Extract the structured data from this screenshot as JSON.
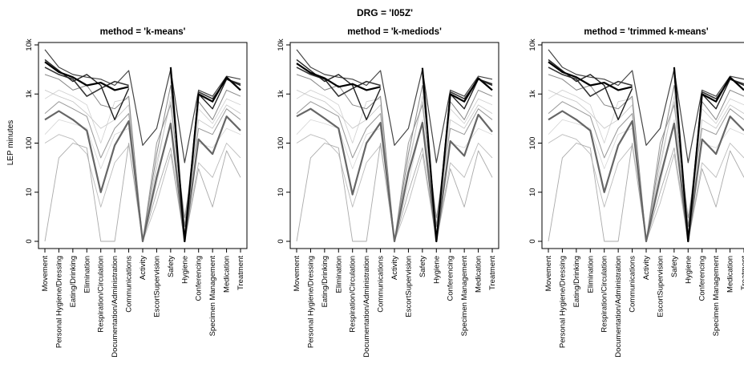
{
  "suptitle": "DRG = 'I05Z'",
  "chart_data": [
    {
      "type": "line",
      "title": "method = 'k-means'",
      "ylabel": "LEP minutes",
      "yscale": "log",
      "yticks": [
        {
          "value": 0,
          "label": "0"
        },
        {
          "value": 10,
          "label": "10"
        },
        {
          "value": 100,
          "label": "100"
        },
        {
          "value": 1000,
          "label": "1k"
        },
        {
          "value": 10000,
          "label": "10k"
        }
      ],
      "categories": [
        "Movement",
        "Personal Hygiene/Dressing",
        "Eating/Drinking",
        "Elimination",
        "Respiration/Circulation",
        "Documentation/Administration",
        "Communications",
        "Activity",
        "EscortSupervision",
        "Safety",
        "Hygiene",
        "Conferencing",
        "Specimen Management",
        "Medication",
        "Treatment"
      ],
      "series": [
        {
          "values": [
            4500,
            2800,
            2200,
            1500,
            1700,
            1200,
            1400,
            null,
            null,
            3500,
            1,
            1000,
            700,
            2200,
            1200
          ],
          "color": "#000000",
          "width": 2.2
        },
        {
          "values": [
            3500,
            2500,
            2000,
            900,
            1300,
            1800,
            1500,
            null,
            null,
            2800,
            1,
            1100,
            800,
            2000,
            1600
          ],
          "color": "#333333",
          "width": 1.6
        },
        {
          "values": [
            8000,
            3500,
            2500,
            2200,
            2000,
            1500,
            3000,
            90,
            200,
            3200,
            40,
            1200,
            900,
            2300,
            2000
          ],
          "color": "#444444",
          "width": 1.2
        },
        {
          "values": [
            300,
            450,
            300,
            180,
            10,
            90,
            280,
            0,
            20,
            250,
            0,
            120,
            60,
            350,
            180
          ],
          "color": "#666666",
          "width": 2.2
        },
        {
          "values": [
            5000,
            3000,
            1800,
            2500,
            1500,
            300,
            1300,
            null,
            null,
            3000,
            0,
            1000,
            500,
            2000,
            1500
          ],
          "color": "#222222",
          "width": 1.4
        },
        {
          "values": [
            2500,
            2000,
            1200,
            1500,
            600,
            500,
            900,
            0,
            60,
            1500,
            2,
            700,
            300,
            1200,
            900
          ],
          "color": "#888888",
          "width": 1.0
        },
        {
          "values": [
            400,
            700,
            500,
            350,
            50,
            200,
            400,
            1,
            100,
            600,
            3,
            200,
            150,
            500,
            300
          ],
          "color": "#999999",
          "width": 1.0
        },
        {
          "values": [
            0,
            50,
            100,
            80,
            0,
            0,
            100,
            0,
            10,
            80,
            0,
            30,
            5,
            70,
            20
          ],
          "color": "#aaaaaa",
          "width": 0.9
        },
        {
          "values": [
            100,
            150,
            120,
            60,
            5,
            40,
            90,
            0,
            6,
            60,
            1,
            40,
            20,
            100,
            50
          ],
          "color": "#bbbbbb",
          "width": 0.9
        },
        {
          "values": [
            1200,
            900,
            700,
            400,
            200,
            300,
            600,
            0,
            40,
            700,
            1,
            300,
            200,
            600,
            400
          ],
          "color": "#c4c4c4",
          "width": 0.8
        },
        {
          "values": [
            800,
            1200,
            900,
            600,
            100,
            700,
            800,
            0,
            30,
            900,
            0,
            500,
            250,
            800,
            600
          ],
          "color": "#cfcfcf",
          "width": 0.8
        },
        {
          "values": [
            150,
            300,
            250,
            200,
            30,
            150,
            200,
            0,
            15,
            300,
            2,
            100,
            80,
            200,
            150
          ],
          "color": "#d6d6d6",
          "width": 0.8
        }
      ]
    },
    {
      "type": "line",
      "title": "method = 'k-mediods'",
      "yscale": "log",
      "yticks": [
        {
          "value": 0,
          "label": "0"
        },
        {
          "value": 10,
          "label": "10"
        },
        {
          "value": 100,
          "label": "100"
        },
        {
          "value": 1000,
          "label": "1k"
        },
        {
          "value": 10000,
          "label": "10k"
        }
      ],
      "categories": [
        "Movement",
        "Personal Hygiene/Dressing",
        "Eating/Drinking",
        "Elimination",
        "Respiration/Circulation",
        "Documentation/Administration",
        "Communications",
        "Activity",
        "EscortSupervision",
        "Safety",
        "Hygiene",
        "Conferencing",
        "Specimen Management",
        "Medication",
        "Treatment"
      ],
      "series": [
        {
          "values": [
            4200,
            2700,
            2100,
            1400,
            1600,
            1200,
            1400,
            null,
            null,
            3400,
            1,
            1000,
            700,
            2100,
            1200
          ],
          "color": "#000000",
          "width": 2.2
        },
        {
          "values": [
            3500,
            2500,
            2000,
            900,
            1300,
            1800,
            1500,
            null,
            null,
            2800,
            1,
            1100,
            800,
            2000,
            1600
          ],
          "color": "#333333",
          "width": 1.6
        },
        {
          "values": [
            8000,
            3500,
            2500,
            2200,
            2000,
            1500,
            3000,
            90,
            200,
            3200,
            40,
            1200,
            900,
            2300,
            2000
          ],
          "color": "#444444",
          "width": 1.2
        },
        {
          "values": [
            350,
            500,
            320,
            200,
            9,
            100,
            260,
            0,
            25,
            260,
            0,
            110,
            55,
            380,
            170
          ],
          "color": "#666666",
          "width": 2.2
        },
        {
          "values": [
            5000,
            3000,
            1800,
            2500,
            1500,
            300,
            1300,
            null,
            null,
            3000,
            0,
            1000,
            500,
            2000,
            1500
          ],
          "color": "#222222",
          "width": 1.4
        },
        {
          "values": [
            2500,
            2000,
            1200,
            1500,
            600,
            500,
            900,
            0,
            60,
            1500,
            2,
            700,
            300,
            1200,
            900
          ],
          "color": "#888888",
          "width": 1.0
        },
        {
          "values": [
            400,
            700,
            500,
            350,
            50,
            200,
            400,
            1,
            100,
            600,
            3,
            200,
            150,
            500,
            300
          ],
          "color": "#999999",
          "width": 1.0
        },
        {
          "values": [
            0,
            50,
            100,
            80,
            0,
            0,
            100,
            0,
            10,
            80,
            0,
            30,
            5,
            70,
            20
          ],
          "color": "#aaaaaa",
          "width": 0.9
        },
        {
          "values": [
            100,
            150,
            120,
            60,
            5,
            40,
            90,
            0,
            6,
            60,
            1,
            40,
            20,
            100,
            50
          ],
          "color": "#bbbbbb",
          "width": 0.9
        },
        {
          "values": [
            1200,
            900,
            700,
            400,
            200,
            300,
            600,
            0,
            40,
            700,
            1,
            300,
            200,
            600,
            400
          ],
          "color": "#c4c4c4",
          "width": 0.8
        },
        {
          "values": [
            800,
            1200,
            900,
            600,
            100,
            700,
            800,
            0,
            30,
            900,
            0,
            500,
            250,
            800,
            600
          ],
          "color": "#cfcfcf",
          "width": 0.8
        },
        {
          "values": [
            150,
            300,
            250,
            200,
            30,
            150,
            200,
            0,
            15,
            300,
            2,
            100,
            80,
            200,
            150
          ],
          "color": "#d6d6d6",
          "width": 0.8
        }
      ]
    },
    {
      "type": "line",
      "title": "method = 'trimmed k-means'",
      "yscale": "log",
      "yticks": [
        {
          "value": 0,
          "label": "0"
        },
        {
          "value": 10,
          "label": "10"
        },
        {
          "value": 100,
          "label": "100"
        },
        {
          "value": 1000,
          "label": "1k"
        },
        {
          "value": 10000,
          "label": "10k"
        }
      ],
      "categories": [
        "Movement",
        "Personal Hygiene/Dressing",
        "Eating/Drinking",
        "Elimination",
        "Respiration/Circulation",
        "Documentation/Administration",
        "Communications",
        "Activity",
        "EscortSupervision",
        "Safety",
        "Hygiene",
        "Conferencing",
        "Specimen Management",
        "Medication",
        "Treatment"
      ],
      "series": [
        {
          "values": [
            4500,
            2800,
            2200,
            1500,
            1700,
            1200,
            1400,
            null,
            null,
            3500,
            1,
            1000,
            700,
            2200,
            1200
          ],
          "color": "#000000",
          "width": 2.2
        },
        {
          "values": [
            3500,
            2500,
            2000,
            900,
            1300,
            1800,
            1500,
            null,
            null,
            2800,
            1,
            1100,
            800,
            2000,
            1600
          ],
          "color": "#333333",
          "width": 1.6
        },
        {
          "values": [
            8000,
            3500,
            2500,
            2200,
            2000,
            1500,
            3000,
            90,
            200,
            3200,
            40,
            1200,
            900,
            2300,
            2000
          ],
          "color": "#444444",
          "width": 1.2
        },
        {
          "values": [
            300,
            450,
            300,
            180,
            10,
            90,
            280,
            0,
            20,
            250,
            0,
            120,
            60,
            350,
            180
          ],
          "color": "#666666",
          "width": 2.2
        },
        {
          "values": [
            5000,
            3000,
            1800,
            2500,
            1500,
            300,
            1300,
            null,
            null,
            3000,
            0,
            1000,
            500,
            2000,
            1500
          ],
          "color": "#222222",
          "width": 1.4
        },
        {
          "values": [
            2500,
            2000,
            1200,
            1500,
            600,
            500,
            900,
            0,
            60,
            1500,
            2,
            700,
            300,
            1200,
            900
          ],
          "color": "#888888",
          "width": 1.0
        },
        {
          "values": [
            400,
            700,
            500,
            350,
            50,
            200,
            400,
            1,
            100,
            600,
            3,
            200,
            150,
            500,
            300
          ],
          "color": "#999999",
          "width": 1.0
        },
        {
          "values": [
            0,
            50,
            100,
            80,
            0,
            0,
            100,
            0,
            10,
            80,
            0,
            30,
            5,
            70,
            20
          ],
          "color": "#aaaaaa",
          "width": 0.9
        },
        {
          "values": [
            100,
            150,
            120,
            60,
            5,
            40,
            90,
            0,
            6,
            60,
            1,
            40,
            20,
            100,
            50
          ],
          "color": "#bbbbbb",
          "width": 0.9
        },
        {
          "values": [
            1200,
            900,
            700,
            400,
            200,
            300,
            600,
            0,
            40,
            700,
            1,
            300,
            200,
            600,
            400
          ],
          "color": "#c4c4c4",
          "width": 0.8
        },
        {
          "values": [
            800,
            1200,
            900,
            600,
            100,
            700,
            800,
            0,
            30,
            900,
            0,
            500,
            250,
            800,
            600
          ],
          "color": "#cfcfcf",
          "width": 0.8
        },
        {
          "values": [
            150,
            300,
            250,
            200,
            30,
            150,
            200,
            0,
            15,
            300,
            2,
            100,
            80,
            200,
            150
          ],
          "color": "#d6d6d6",
          "width": 0.8
        }
      ]
    }
  ]
}
